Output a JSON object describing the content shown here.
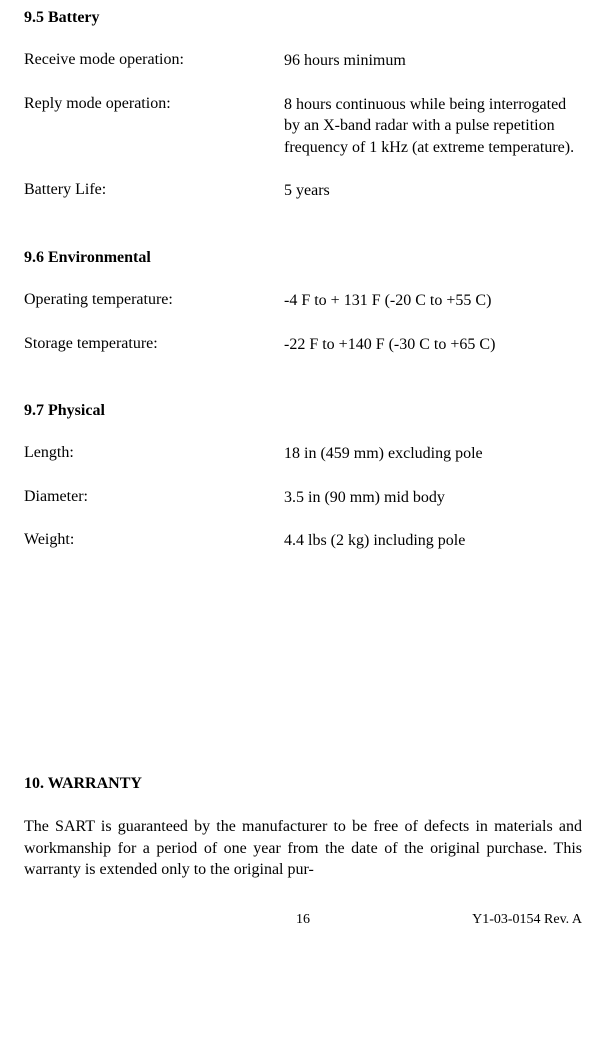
{
  "sections": {
    "battery": {
      "heading": "9.5  Battery",
      "rows": {
        "receive": {
          "label": "Receive mode operation:",
          "value": "96 hours minimum"
        },
        "reply": {
          "label": "Reply  mode operation:",
          "value": "8 hours continuous while being interrogated by an X-band radar with a pulse repetition frequency of 1 kHz (at extreme temperature)."
        },
        "life": {
          "label": "Battery Life:",
          "value": "5 years"
        }
      }
    },
    "environmental": {
      "heading": "9.6  Environmental",
      "rows": {
        "op_temp": {
          "label": "Operating temperature:",
          "value": "-4 F to + 131 F (-20 C to +55 C)"
        },
        "stg_temp": {
          "label": "Storage temperature:",
          "value": "-22 F to +140 F (-30 C to +65 C)"
        }
      }
    },
    "physical": {
      "heading": "9.7  Physical",
      "rows": {
        "length": {
          "label": "Length:",
          "value": "18 in (459 mm) excluding pole"
        },
        "diameter": {
          "label": "Diameter:",
          "value": "3.5 in (90 mm) mid body"
        },
        "weight": {
          "label": "Weight:",
          "value": "4.4 lbs (2 kg) including pole"
        }
      }
    },
    "warranty": {
      "heading": "10.  WARRANTY",
      "para": "The SART is guaranteed by the manufacturer to be free of defects in materials and workmanship for a period of one year from the date of the original purchase.  This warranty is extended only to the original pur-"
    }
  },
  "footer": {
    "page": "16",
    "docid": "Y1-03-0154  Rev. A"
  }
}
